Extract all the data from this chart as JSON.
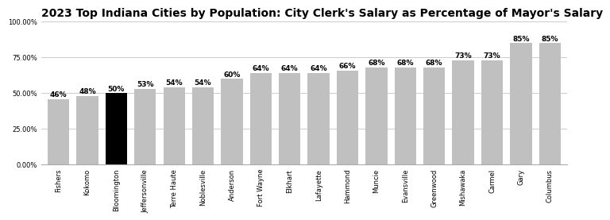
{
  "title": "2023 Top Indiana Cities by Population: City Clerk's Salary as Percentage of Mayor's Salary",
  "categories": [
    "Fishers",
    "Kokomo",
    "Bloomington",
    "Jeffersonville",
    "Terre Haute",
    "Noblesville",
    "Anderson",
    "Fort Wayne",
    "Elkhart",
    "Lafayette",
    "Hammond",
    "Muncie",
    "Evansville",
    "Greenwood",
    "Mishawaka",
    "Carmel",
    "Gary",
    "Columbus"
  ],
  "values": [
    46,
    48,
    50,
    53,
    54,
    54,
    60,
    64,
    64,
    64,
    66,
    68,
    68,
    68,
    73,
    73,
    85,
    85
  ],
  "bar_colors": [
    "#c0c0c0",
    "#c0c0c0",
    "#000000",
    "#c0c0c0",
    "#c0c0c0",
    "#c0c0c0",
    "#c0c0c0",
    "#c0c0c0",
    "#c0c0c0",
    "#c0c0c0",
    "#c0c0c0",
    "#c0c0c0",
    "#c0c0c0",
    "#c0c0c0",
    "#c0c0c0",
    "#c0c0c0",
    "#c0c0c0",
    "#c0c0c0"
  ],
  "ylim": [
    0,
    100
  ],
  "yticks": [
    0,
    25,
    50,
    75,
    100
  ],
  "ytick_labels": [
    "0.00%",
    "25.00%",
    "50.00%",
    "75.00%",
    "100.00%"
  ],
  "title_fontsize": 10,
  "label_fontsize": 6.5,
  "tick_fontsize": 6,
  "background_color": "#ffffff",
  "grid_color": "#cccccc"
}
